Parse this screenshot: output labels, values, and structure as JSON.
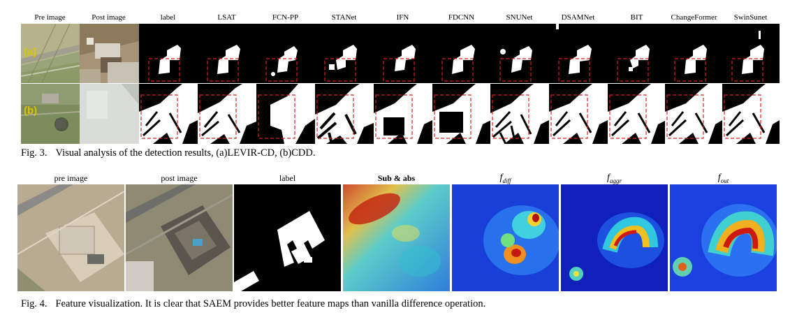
{
  "fig3": {
    "headers": [
      "Pre image",
      "Post image",
      "label",
      "LSAT",
      "FCN-PP",
      "STANet",
      "IFN",
      "FDCNN",
      "SNUNet",
      "DSAMNet",
      "BIT",
      "ChangeFormer",
      "SwinSunet"
    ],
    "row_labels": [
      "(a)",
      "(b)"
    ],
    "caption_label": "Fig. 3.",
    "caption_text": "Visual analysis of the detection results, (a)LEVIR-CD, (b)CDD."
  },
  "fig4": {
    "headers": [
      "pre image",
      "post image",
      "label",
      "Sub & abs"
    ],
    "math_headers": [
      {
        "base": "f",
        "sub": "diff"
      },
      {
        "base": "f",
        "sub": "aggr"
      },
      {
        "base": "f",
        "sub": "out"
      }
    ],
    "caption_label": "Fig. 4.",
    "caption_text": "Feature visualization. It is clear that SAEM provides better feature maps than vanilla difference operation."
  },
  "colors": {
    "highlight_box": "#d62020",
    "row_label": "#d9c500",
    "mask_bg": "#000000",
    "mask_fg": "#ffffff"
  }
}
